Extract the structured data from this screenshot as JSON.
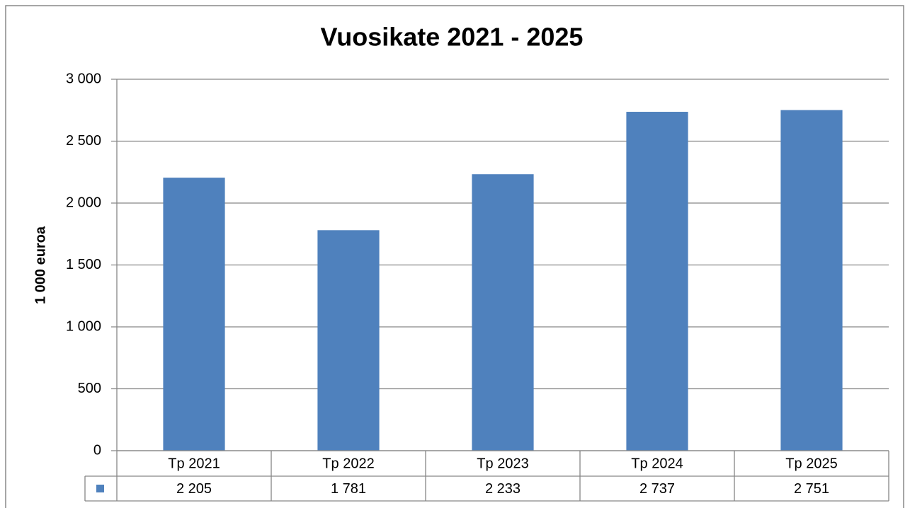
{
  "chart_data": {
    "type": "bar",
    "title": "Vuosikate 2021 - 2025",
    "y_label": "1 000 euroa",
    "categories": [
      "Tp 2021",
      "Tp 2022",
      "Tp 2023",
      "Tp 2024",
      "Tp 2025"
    ],
    "values": [
      2205,
      1781,
      2233,
      2737,
      2751
    ],
    "value_labels": [
      "2 205",
      "1 781",
      "2 233",
      "2 737",
      "2 751"
    ],
    "color": "#4f81bd",
    "ylim": [
      0,
      3000
    ],
    "yticks": [
      0,
      500,
      {
        "value": 1000,
        "label": "1 000"
      },
      {
        "value": 1500,
        "label": "1 500"
      },
      {
        "value": 2000,
        "label": "2 000"
      },
      {
        "value": 2500,
        "label": "2 500"
      },
      {
        "value": 3000,
        "label": "3 000"
      }
    ],
    "grid": true
  }
}
